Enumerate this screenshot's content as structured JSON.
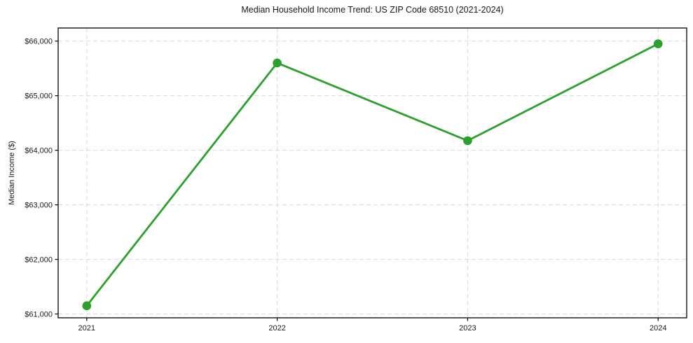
{
  "chart_data": {
    "type": "line",
    "title": "Median Household Income Trend: US ZIP Code 68510 (2021-2024)",
    "xlabel": "",
    "ylabel": "Median Income ($)",
    "x": [
      2021,
      2022,
      2023,
      2024
    ],
    "x_tick_labels": [
      "2021",
      "2022",
      "2023",
      "2024"
    ],
    "series": [
      {
        "name": "Median Household Income",
        "values": [
          61150,
          65600,
          64175,
          65950
        ]
      }
    ],
    "yticks": [
      61000,
      62000,
      63000,
      64000,
      65000,
      66000
    ],
    "y_tick_labels": [
      "$61,000",
      "$62,000",
      "$63,000",
      "$64,000",
      "$65,000",
      "$66,000"
    ],
    "xlim": [
      2020.85,
      2024.15
    ],
    "ylim": [
      60930,
      66240
    ],
    "grid": "dashed",
    "legend": "none",
    "colors": {
      "line": "#2ca02c",
      "marker": "#2ca02c",
      "grid": "#d9d9d9",
      "axis": "#000000",
      "text": "#1a1a1a",
      "background": "#ffffff"
    }
  }
}
